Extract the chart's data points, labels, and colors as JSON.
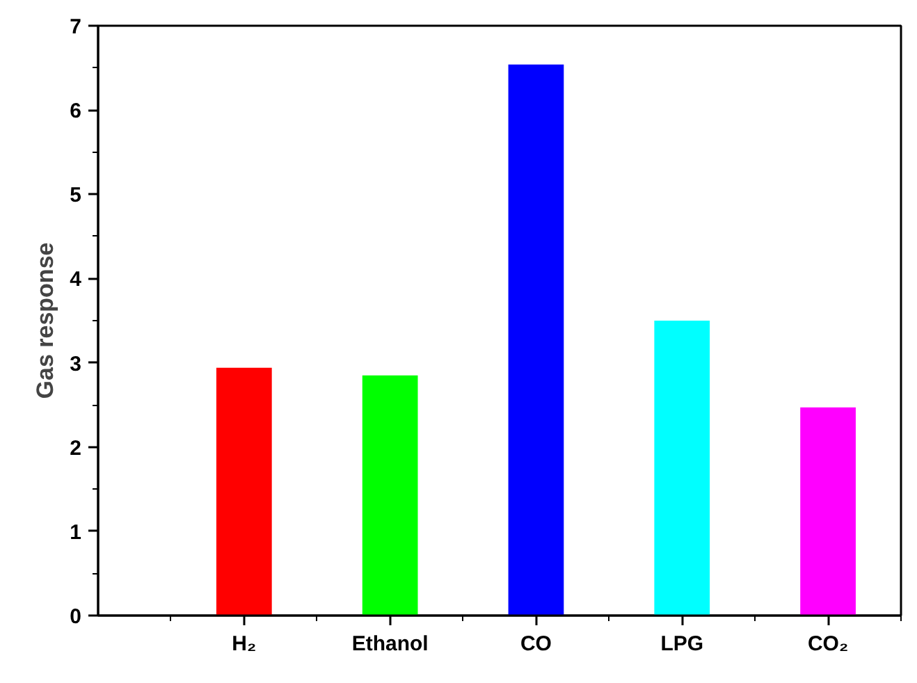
{
  "chart_data": {
    "type": "bar",
    "ylabel": "Gas response",
    "categories": [
      "H₂",
      "Ethanol",
      "CO",
      "LPG",
      "CO₂"
    ],
    "values": [
      2.94,
      2.85,
      6.54,
      3.5,
      2.47
    ],
    "colors": [
      "#ff0000",
      "#00ff00",
      "#0000ff",
      "#00ffff",
      "#ff00ff"
    ],
    "ylim": [
      0,
      7
    ],
    "yticks": [
      0,
      1,
      2,
      3,
      4,
      5,
      6,
      7
    ],
    "grid": false
  }
}
